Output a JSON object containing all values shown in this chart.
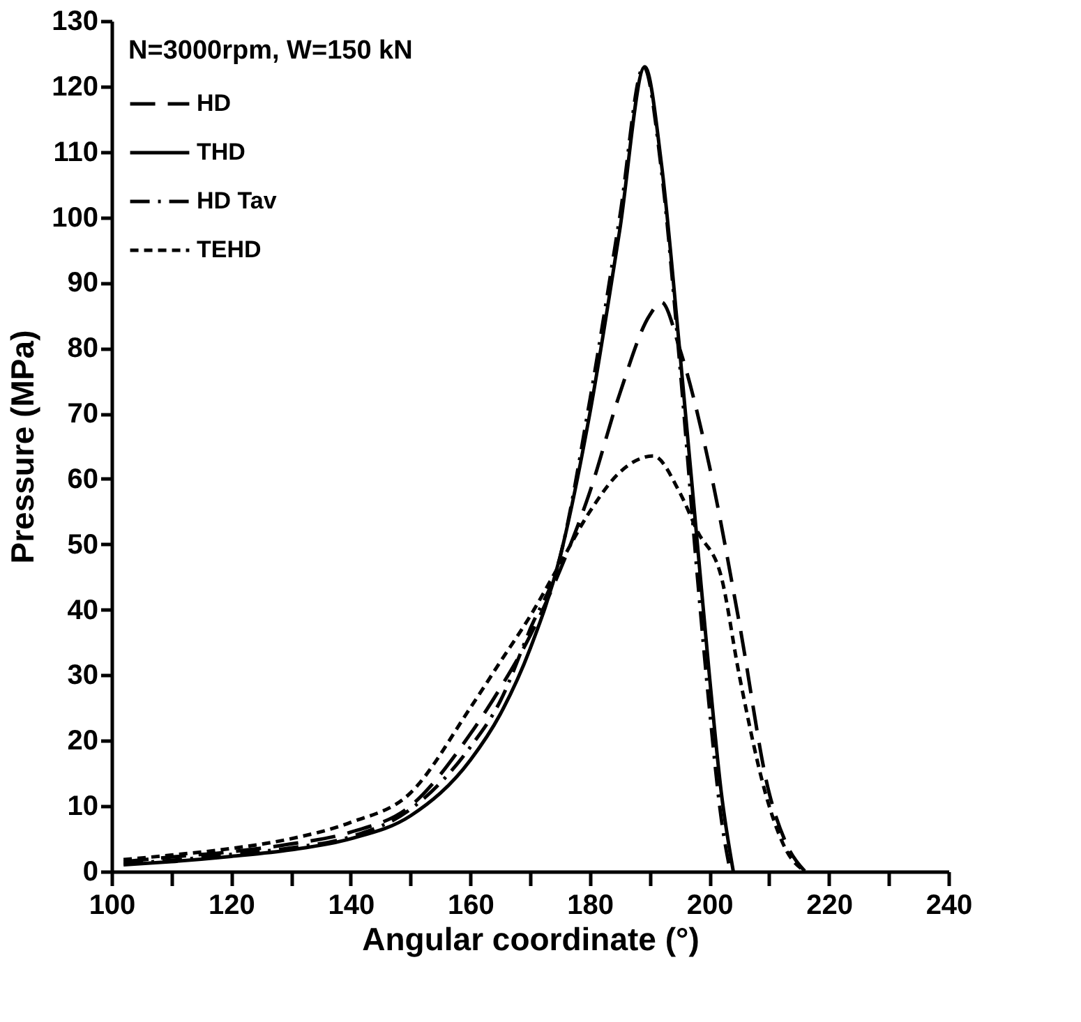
{
  "chart_data": {
    "type": "line",
    "xlabel": "Angular coordinate (°)",
    "ylabel": "Pressure (MPa)",
    "legend_title": "N=3000rpm, W=150 kN",
    "legend": "top left",
    "grid": false,
    "marker": "none",
    "xlim": [
      100,
      240
    ],
    "ylim": [
      0,
      130
    ],
    "xticks": [
      100,
      {
        "value": 110,
        "label": null
      },
      120,
      {
        "value": 130,
        "label": null
      },
      140,
      {
        "value": 150,
        "label": null
      },
      160,
      {
        "value": 170,
        "label": null
      },
      180,
      {
        "value": 190,
        "label": null
      },
      200,
      {
        "value": 210,
        "label": null
      },
      220,
      {
        "value": 230,
        "label": null
      },
      240
    ],
    "yticks": [
      0,
      10,
      20,
      30,
      40,
      50,
      60,
      70,
      80,
      90,
      100,
      110,
      120,
      130
    ],
    "series": [
      {
        "name": "HD",
        "color": "#000000",
        "line_style": "dashed",
        "x": [
          102,
          110,
          120,
          130,
          140,
          150,
          160,
          165,
          170,
          175,
          180,
          185,
          190,
          192,
          195,
          200,
          205,
          210,
          213,
          216
        ],
        "values": [
          1.5,
          2.2,
          3,
          4.2,
          6,
          10,
          21,
          28,
          36,
          46,
          58,
          73,
          85,
          87,
          80,
          62,
          38,
          12,
          4,
          0
        ]
      },
      {
        "name": "THD",
        "color": "#000000",
        "line_style": "solid",
        "x": [
          102,
          110,
          120,
          130,
          140,
          150,
          160,
          165,
          170,
          175,
          180,
          185,
          189.2,
          192,
          195,
          198,
          200,
          202,
          204
        ],
        "values": [
          1,
          1.5,
          2.3,
          3.3,
          5,
          8.5,
          17,
          24,
          34,
          48,
          70,
          98,
          123,
          108,
          80,
          50,
          30,
          12,
          0
        ]
      },
      {
        "name": "HD Tav",
        "color": "#000000",
        "line_style": "dashdot",
        "x": [
          102,
          110,
          120,
          130,
          140,
          150,
          160,
          165,
          170,
          175,
          180,
          185,
          189,
          192,
          195,
          198,
          200,
          202,
          203.5
        ],
        "values": [
          1.2,
          1.7,
          2.6,
          3.6,
          5.3,
          9.5,
          19,
          26,
          37,
          48,
          72,
          100,
          123,
          107,
          78,
          45,
          25,
          8,
          0
        ]
      },
      {
        "name": "TEHD",
        "color": "#000000",
        "line_style": "dotted",
        "x": [
          102,
          110,
          120,
          130,
          140,
          150,
          160,
          165,
          170,
          175,
          180,
          185,
          190.6,
          195,
          198,
          202,
          205,
          210,
          213,
          216
        ],
        "values": [
          1.8,
          2.5,
          3.5,
          5,
          7.5,
          12,
          25,
          32,
          39,
          47,
          55,
          61,
          63.5,
          58,
          52,
          45,
          30,
          10,
          3,
          0
        ]
      }
    ]
  }
}
